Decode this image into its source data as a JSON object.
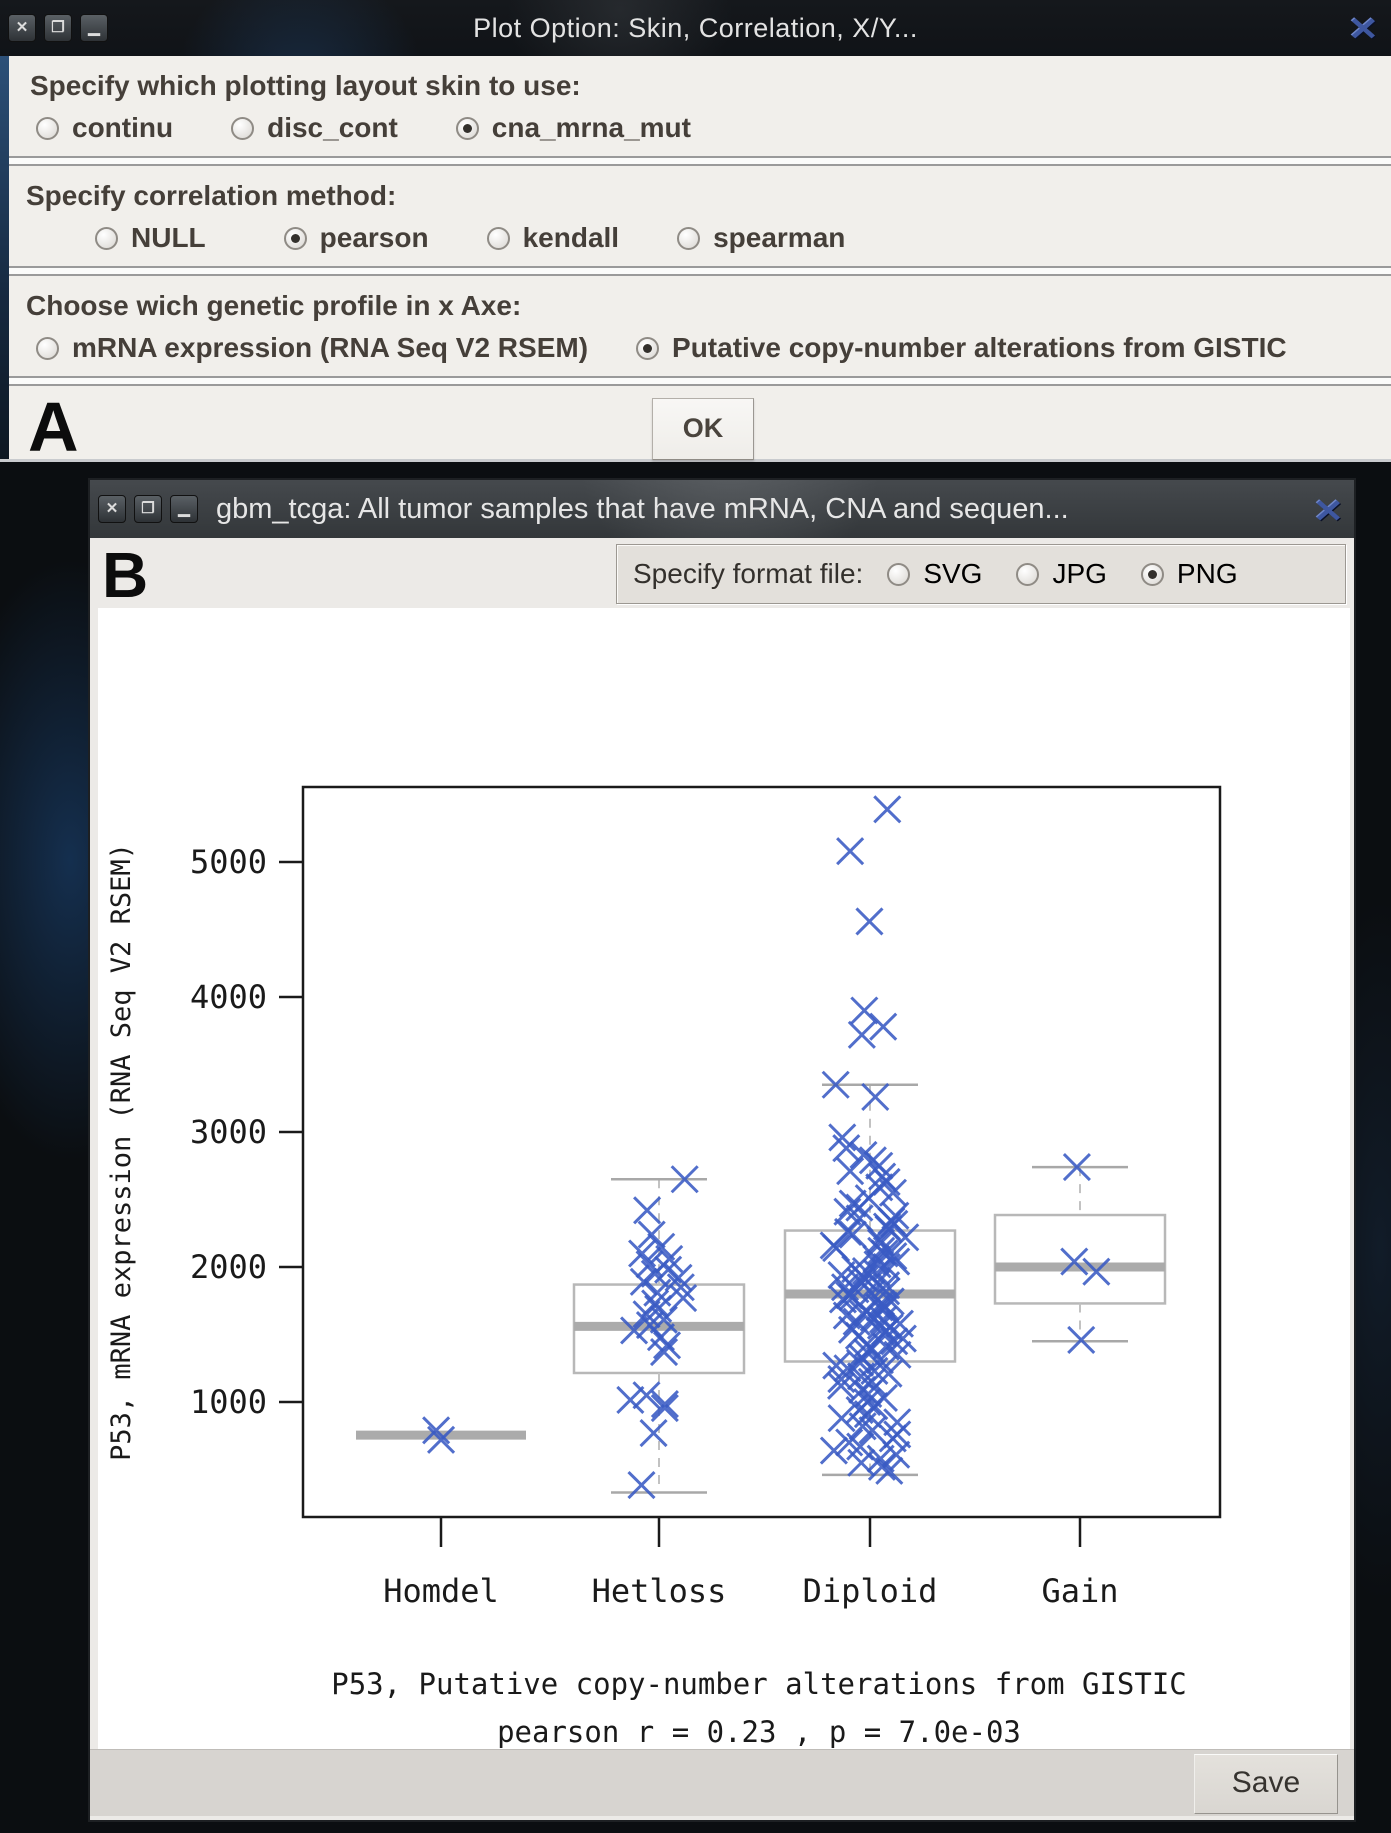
{
  "window_a": {
    "title": "Plot Option: Skin, Correlation, X/Y...",
    "titlebar": {
      "close": "✕",
      "maximize": "❐",
      "minimize": "▁",
      "logo": "✕"
    },
    "sections": [
      {
        "label": "Specify which plotting layout skin to use:",
        "options": [
          {
            "label": "continu",
            "selected": false
          },
          {
            "label": "disc_cont",
            "selected": false
          },
          {
            "label": "cna_mrna_mut",
            "selected": true
          }
        ]
      },
      {
        "label": "Specify correlation method:",
        "options": [
          {
            "label": "NULL",
            "selected": false
          },
          {
            "label": "pearson",
            "selected": true
          },
          {
            "label": "kendall",
            "selected": false
          },
          {
            "label": "spearman",
            "selected": false
          }
        ]
      },
      {
        "label": "Choose wich genetic profile in x Axe:",
        "options": [
          {
            "label": "mRNA expression (RNA Seq V2 RSEM)",
            "selected": false
          },
          {
            "label": "Putative copy-number alterations from GISTIC",
            "selected": true
          }
        ]
      }
    ],
    "footer": {
      "marker": "A",
      "ok_label": "OK"
    }
  },
  "window_b": {
    "title": "gbm_tcga: All tumor samples that have mRNA, CNA and sequen...",
    "titlebar": {
      "close": "✕",
      "maximize": "❐",
      "minimize": "▁",
      "logo": "✕"
    },
    "marker": "B",
    "format_panel": {
      "label": "Specify format file:",
      "options": [
        {
          "label": "SVG",
          "selected": false
        },
        {
          "label": "JPG",
          "selected": false
        },
        {
          "label": "PNG",
          "selected": true
        }
      ]
    },
    "save_label": "Save"
  },
  "chart_data": {
    "type": "boxplot-scatter",
    "ylabel": "P53, mRNA expression (RNA Seq V2 RSEM)",
    "caption_line1": "P53, Putative copy-number alterations from GISTIC",
    "caption_line2": "pearson  r =  0.23 , p =  7.0e-03",
    "pearson_r": 0.23,
    "p_value": "7.0e-03",
    "yticks": [
      1000,
      2000,
      3000,
      4000,
      5000
    ],
    "ylim": [
      150,
      5560
    ],
    "grid": false,
    "marker": "x-cross",
    "marker_color": "#3a5bc4",
    "box_color": "#b8b8b8",
    "median_color": "#ababab",
    "categories": [
      "Homdel",
      "Hetloss",
      "Diploid",
      "Gain"
    ],
    "groups": [
      {
        "name": "Homdel",
        "q1": 750,
        "median": 755,
        "q3": 760,
        "whisker_low": null,
        "whisker_high": null,
        "points": [
          790,
          720
        ],
        "outliers": []
      },
      {
        "name": "Hetloss",
        "q1": 1215,
        "median": 1560,
        "q3": 1870,
        "whisker_low": 330,
        "whisker_high": 2650,
        "points": [
          2650,
          2420,
          2240,
          2150,
          2100,
          2060,
          2020,
          1980,
          1950,
          1920,
          1890,
          1850,
          1810,
          1770,
          1730,
          1690,
          1650,
          1610,
          1570,
          1530,
          1480,
          1420,
          1370,
          1050,
          1015,
          985,
          955,
          770,
          385
        ],
        "outliers": []
      },
      {
        "name": "Diploid",
        "q1": 1300,
        "median": 1800,
        "q3": 2270,
        "whisker_low": 460,
        "whisker_high": 3350,
        "points": [
          3350,
          3260,
          2960,
          2880,
          2830,
          2790,
          2750,
          2710,
          2670,
          2630,
          2590,
          2550,
          2510,
          2470,
          2440,
          2410,
          2380,
          2360,
          2340,
          2320,
          2300,
          2280,
          2260,
          2240,
          2220,
          2200,
          2180,
          2160,
          2140,
          2120,
          2100,
          2080,
          2060,
          2040,
          2020,
          2000,
          1985,
          1970,
          1955,
          1940,
          1925,
          1910,
          1895,
          1880,
          1865,
          1850,
          1835,
          1820,
          1805,
          1790,
          1775,
          1760,
          1745,
          1730,
          1715,
          1700,
          1685,
          1670,
          1655,
          1640,
          1625,
          1610,
          1595,
          1580,
          1565,
          1550,
          1535,
          1520,
          1505,
          1490,
          1470,
          1450,
          1430,
          1410,
          1390,
          1370,
          1350,
          1330,
          1310,
          1290,
          1270,
          1250,
          1230,
          1210,
          1190,
          1170,
          1150,
          1120,
          1090,
          1060,
          1030,
          1000,
          970,
          940,
          910,
          880,
          850,
          820,
          790,
          760,
          730,
          700,
          670,
          640,
          610,
          580,
          550,
          520,
          490
        ],
        "outliers": [
          5390,
          5080,
          4560,
          3900,
          3780,
          3720
        ]
      },
      {
        "name": "Gain",
        "q1": 1730,
        "median": 2000,
        "q3": 2385,
        "whisker_low": 1450,
        "whisker_high": 2740,
        "points": [
          2740,
          2040,
          1965,
          1460
        ],
        "outliers": []
      }
    ]
  }
}
